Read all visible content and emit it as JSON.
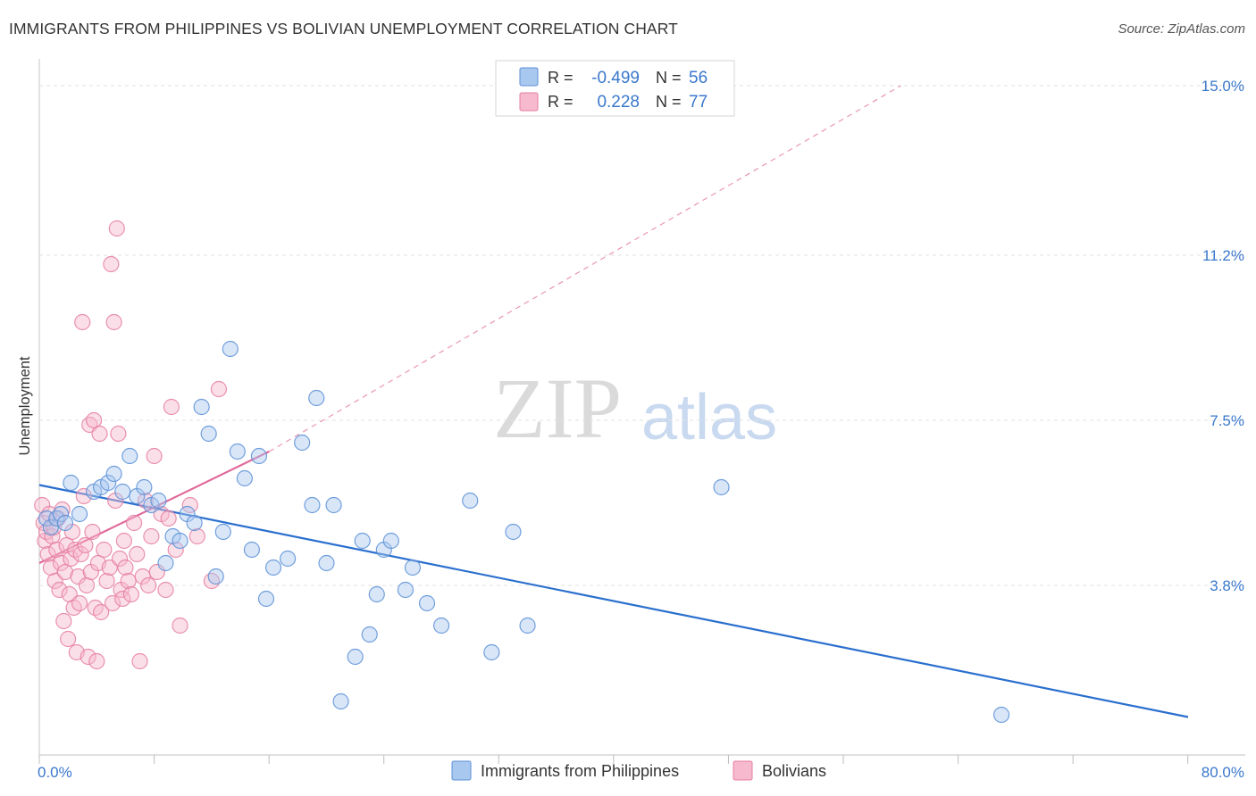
{
  "header": {
    "title": "IMMIGRANTS FROM PHILIPPINES VS BOLIVIAN UNEMPLOYMENT CORRELATION CHART",
    "source": "Source: ZipAtlas.com"
  },
  "watermark": {
    "zip": "ZIP",
    "atlas": "atlas"
  },
  "colors": {
    "blue_fill": "#a9c8ef",
    "blue_stroke": "#5b8fd6",
    "blue_line": "#2a6fce",
    "pink_fill": "#f7b9cd",
    "pink_stroke": "#e57ea0",
    "pink_line": "#e0699a",
    "axis_label": "#3a78cc",
    "grid": "#e2e2e2"
  },
  "chart_data": {
    "type": "scatter",
    "title": "IMMIGRANTS FROM PHILIPPINES VS BOLIVIAN UNEMPLOYMENT CORRELATION CHART",
    "xlabel": "",
    "ylabel": "Unemployment",
    "xlim": [
      0,
      80
    ],
    "ylim": [
      0,
      15.6
    ],
    "x_tick_labels": [
      "0.0%",
      "80.0%"
    ],
    "y_ticks": [
      3.8,
      7.5,
      11.2,
      15.0
    ],
    "y_tick_labels": [
      "3.8%",
      "7.5%",
      "11.2%",
      "15.0%"
    ],
    "grid": true,
    "legend_position": "top-center",
    "stats": [
      {
        "r_label": "R =",
        "r_value": "-0.499",
        "n_label": "N =",
        "n_value": "56"
      },
      {
        "r_label": "R =",
        "r_value": "0.228",
        "n_label": "N =",
        "n_value": "77"
      }
    ],
    "series": [
      {
        "name": "Immigrants from Philippines",
        "color": "blue",
        "trend": {
          "x0": 0,
          "y0": 6.05,
          "x1": 80,
          "y1": 0.85
        },
        "points": [
          [
            0.5,
            5.3
          ],
          [
            0.8,
            5.1
          ],
          [
            1.2,
            5.3
          ],
          [
            1.5,
            5.4
          ],
          [
            1.8,
            5.2
          ],
          [
            2.2,
            6.1
          ],
          [
            2.8,
            5.4
          ],
          [
            3.8,
            5.9
          ],
          [
            4.3,
            6.0
          ],
          [
            4.8,
            6.1
          ],
          [
            5.2,
            6.3
          ],
          [
            5.8,
            5.9
          ],
          [
            6.3,
            6.7
          ],
          [
            6.8,
            5.8
          ],
          [
            7.3,
            6.0
          ],
          [
            7.8,
            5.6
          ],
          [
            8.3,
            5.7
          ],
          [
            8.8,
            4.3
          ],
          [
            9.3,
            4.9
          ],
          [
            9.8,
            4.8
          ],
          [
            10.3,
            5.4
          ],
          [
            10.8,
            5.2
          ],
          [
            11.3,
            7.8
          ],
          [
            11.8,
            7.2
          ],
          [
            12.3,
            4.0
          ],
          [
            12.8,
            5.0
          ],
          [
            13.3,
            9.1
          ],
          [
            13.8,
            6.8
          ],
          [
            14.3,
            6.2
          ],
          [
            14.8,
            4.6
          ],
          [
            15.3,
            6.7
          ],
          [
            15.8,
            3.5
          ],
          [
            16.3,
            4.2
          ],
          [
            17.3,
            4.4
          ],
          [
            18.3,
            7.0
          ],
          [
            19.0,
            5.6
          ],
          [
            19.3,
            8.0
          ],
          [
            20.0,
            4.3
          ],
          [
            20.5,
            5.6
          ],
          [
            21.0,
            1.2
          ],
          [
            22.0,
            2.2
          ],
          [
            22.5,
            4.8
          ],
          [
            23.0,
            2.7
          ],
          [
            23.5,
            3.6
          ],
          [
            24.0,
            4.6
          ],
          [
            24.5,
            4.8
          ],
          [
            25.5,
            3.7
          ],
          [
            26.0,
            4.2
          ],
          [
            27.0,
            3.4
          ],
          [
            28.0,
            2.9
          ],
          [
            30.0,
            5.7
          ],
          [
            31.5,
            2.3
          ],
          [
            33.0,
            5.0
          ],
          [
            34.0,
            2.9
          ],
          [
            47.5,
            6.0
          ],
          [
            67.0,
            0.9
          ]
        ]
      },
      {
        "name": "Bolivians",
        "color": "pink",
        "trend": {
          "x0": 0,
          "y0": 4.3,
          "x1": 16,
          "y1": 6.8,
          "dash_to_x": 60,
          "dash_to_y": 15.0
        },
        "points": [
          [
            0.2,
            5.6
          ],
          [
            0.3,
            5.2
          ],
          [
            0.4,
            4.8
          ],
          [
            0.5,
            5.0
          ],
          [
            0.6,
            4.5
          ],
          [
            0.7,
            5.4
          ],
          [
            0.8,
            4.2
          ],
          [
            0.9,
            4.9
          ],
          [
            1.0,
            5.1
          ],
          [
            1.1,
            3.9
          ],
          [
            1.2,
            4.6
          ],
          [
            1.3,
            5.3
          ],
          [
            1.4,
            3.7
          ],
          [
            1.5,
            4.3
          ],
          [
            1.6,
            5.5
          ],
          [
            1.7,
            3.0
          ],
          [
            1.8,
            4.1
          ],
          [
            1.9,
            4.7
          ],
          [
            2.0,
            2.6
          ],
          [
            2.1,
            3.6
          ],
          [
            2.2,
            4.4
          ],
          [
            2.3,
            5.0
          ],
          [
            2.4,
            3.3
          ],
          [
            2.5,
            4.6
          ],
          [
            2.6,
            2.3
          ],
          [
            2.7,
            4.0
          ],
          [
            2.8,
            3.4
          ],
          [
            2.9,
            4.5
          ],
          [
            3.0,
            9.7
          ],
          [
            3.1,
            5.8
          ],
          [
            3.2,
            4.7
          ],
          [
            3.3,
            3.8
          ],
          [
            3.4,
            2.2
          ],
          [
            3.5,
            7.4
          ],
          [
            3.6,
            4.1
          ],
          [
            3.7,
            5.0
          ],
          [
            3.8,
            7.5
          ],
          [
            3.9,
            3.3
          ],
          [
            4.0,
            2.1
          ],
          [
            4.1,
            4.3
          ],
          [
            4.2,
            7.2
          ],
          [
            4.3,
            3.2
          ],
          [
            4.5,
            4.6
          ],
          [
            4.7,
            3.9
          ],
          [
            4.9,
            4.2
          ],
          [
            5.0,
            11.0
          ],
          [
            5.1,
            3.4
          ],
          [
            5.2,
            9.7
          ],
          [
            5.3,
            5.7
          ],
          [
            5.4,
            11.8
          ],
          [
            5.5,
            7.2
          ],
          [
            5.6,
            4.4
          ],
          [
            5.7,
            3.7
          ],
          [
            5.8,
            3.5
          ],
          [
            5.9,
            4.8
          ],
          [
            6.0,
            4.2
          ],
          [
            6.2,
            3.9
          ],
          [
            6.4,
            3.6
          ],
          [
            6.6,
            5.2
          ],
          [
            6.8,
            4.5
          ],
          [
            7.0,
            2.1
          ],
          [
            7.2,
            4.0
          ],
          [
            7.4,
            5.7
          ],
          [
            7.6,
            3.8
          ],
          [
            7.8,
            4.9
          ],
          [
            8.0,
            6.7
          ],
          [
            8.2,
            4.1
          ],
          [
            8.5,
            5.4
          ],
          [
            8.8,
            3.7
          ],
          [
            9.0,
            5.3
          ],
          [
            9.2,
            7.8
          ],
          [
            9.5,
            4.6
          ],
          [
            9.8,
            2.9
          ],
          [
            10.5,
            5.6
          ],
          [
            11.0,
            4.9
          ],
          [
            12.0,
            3.9
          ],
          [
            12.5,
            8.2
          ]
        ]
      }
    ]
  }
}
